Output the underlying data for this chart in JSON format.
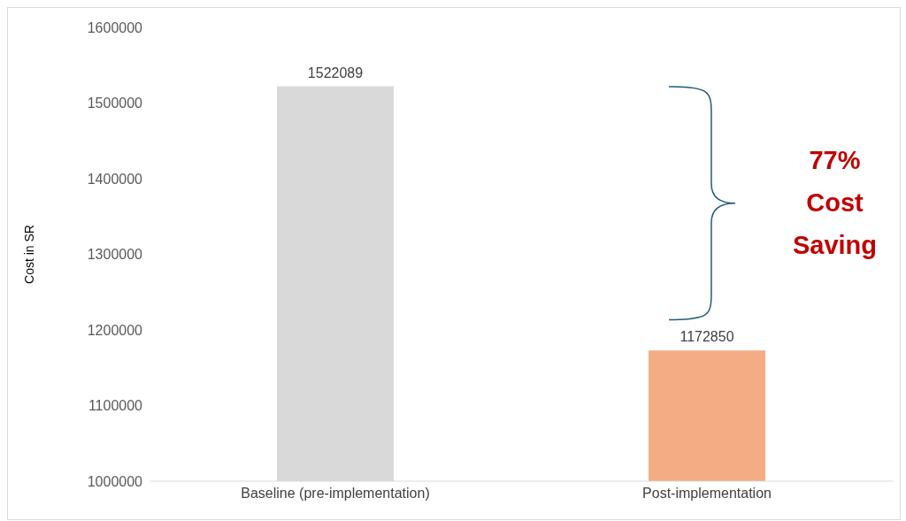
{
  "chart_data": {
    "type": "bar",
    "ylabel": "Cost in SR",
    "categories": [
      "Baseline (pre-implementation)",
      "Post-implementation"
    ],
    "values": [
      1522089,
      1172850
    ],
    "colors": [
      "#d9d9d9",
      "#f4ac84"
    ],
    "ylim": [
      1000000,
      1600000
    ],
    "yticks": [
      1000000,
      1100000,
      1200000,
      1300000,
      1400000,
      1500000,
      1600000
    ],
    "grid": false,
    "data_labels": true,
    "annotations": [
      "77% Cost Saving"
    ]
  }
}
